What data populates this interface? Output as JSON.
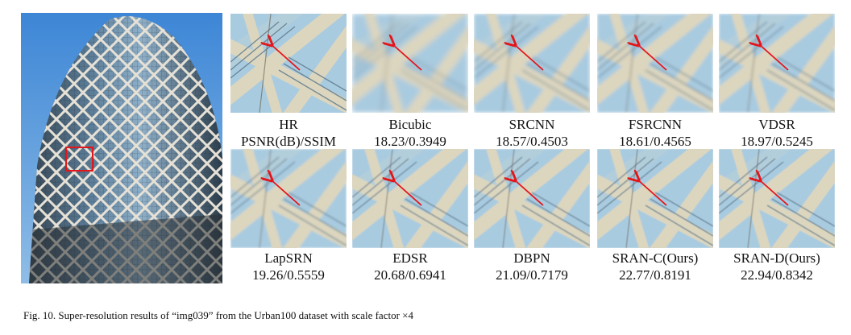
{
  "figure": {
    "caption": "Fig. 10.  Super-resolution results of “img039” from the Urban100 dataset with scale factor ×4",
    "main_image_alt": "Tall glass building with lattice facade, red box marks zoomed region",
    "patches": [
      {
        "name": "HR",
        "metric": "PSNR(dB)/SSIM",
        "blur": 0
      },
      {
        "name": "Bicubic",
        "metric": "18.23/0.3949",
        "blur": 3.2
      },
      {
        "name": "SRCNN",
        "metric": "18.57/0.4503",
        "blur": 2.0
      },
      {
        "name": "FSRCNN",
        "metric": "18.61/0.4565",
        "blur": 1.9
      },
      {
        "name": "VDSR",
        "metric": "18.97/0.5245",
        "blur": 1.6
      },
      {
        "name": "LapSRN",
        "metric": "19.26/0.5559",
        "blur": 1.4
      },
      {
        "name": "EDSR",
        "metric": "20.68/0.6941",
        "blur": 0.9
      },
      {
        "name": "DBPN",
        "metric": "21.09/0.7179",
        "blur": 0.8
      },
      {
        "name": "SRAN-C(Ours)",
        "metric": "22.77/0.8191",
        "blur": 0.5
      },
      {
        "name": "SRAN-D(Ours)",
        "metric": "22.94/0.8342",
        "blur": 0.4
      }
    ],
    "colors": {
      "sky": "#a9cbe0",
      "beam": "#dcd6bf",
      "glass": "#5b7688",
      "marker": "#e3161b"
    }
  }
}
